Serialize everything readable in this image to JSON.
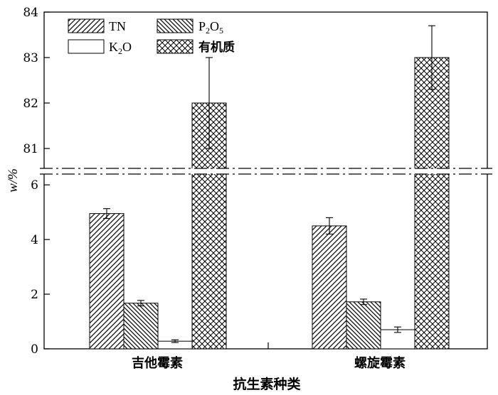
{
  "chart_data": {
    "type": "bar",
    "xlabel": "抗生素种类",
    "ylabel": "w/%",
    "categories": [
      "吉他霉素",
      "螺旋霉素"
    ],
    "y_axis_break": true,
    "lower_ylim": [
      0,
      6.5
    ],
    "upper_ylim": [
      80.5,
      84
    ],
    "lower_ticks": [
      "0",
      "2",
      "4",
      "6"
    ],
    "upper_ticks": [
      "81",
      "82",
      "83",
      "84"
    ],
    "series": [
      {
        "name": "TN",
        "pattern": "forward-hatch",
        "values": [
          4.95,
          4.5
        ],
        "errors": [
          0.18,
          0.3
        ]
      },
      {
        "name": "P2O5",
        "pattern": "backward-hatch",
        "values": [
          1.67,
          1.72
        ],
        "errors": [
          0.1,
          0.1
        ]
      },
      {
        "name": "K2O",
        "pattern": "blank",
        "values": [
          0.28,
          0.7
        ],
        "errors": [
          0.05,
          0.1
        ]
      },
      {
        "name": "有机质",
        "pattern": "crosshatch",
        "values": [
          82.0,
          83.0
        ],
        "errors": [
          1.0,
          0.7
        ]
      }
    ],
    "legend": {
      "position": "top-left",
      "labels": {
        "tn": "TN",
        "p_main": "P",
        "p_sub": "2",
        "o_main": "O",
        "o_sub": "5",
        "k_main": "K",
        "k_sub": "2",
        "k_o": "O",
        "organic": "有机质"
      }
    },
    "colors": {
      "ink": "#000000",
      "background": "#ffffff"
    }
  }
}
